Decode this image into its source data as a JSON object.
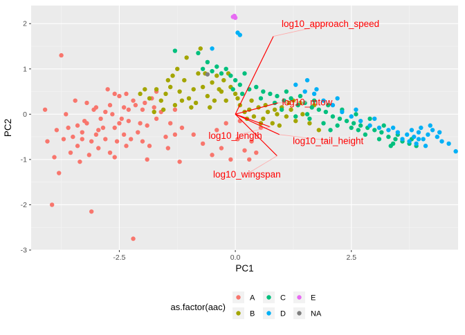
{
  "chart_data": {
    "type": "scatter",
    "title": "",
    "xlabel": "PC1",
    "ylabel": "PC2",
    "xlim": [
      -4.4,
      4.8
    ],
    "ylim": [
      -3.0,
      2.4
    ],
    "x_ticks": [
      -2.5,
      0.0,
      2.5
    ],
    "x_tick_labels": [
      "-2.5",
      "0.0",
      "2.5"
    ],
    "y_ticks": [
      -3,
      -2,
      -1,
      0,
      1,
      2
    ],
    "y_tick_labels": [
      "-3",
      "-2",
      "-1",
      "0",
      "1",
      "2"
    ],
    "grid": true,
    "legend": {
      "title": "as.factor(aac)",
      "placement": "bottom",
      "entries": [
        {
          "label": "A",
          "color": "#F8766D"
        },
        {
          "label": "B",
          "color": "#A3A500"
        },
        {
          "label": "C",
          "color": "#00BF7D"
        },
        {
          "label": "D",
          "color": "#00B0F6"
        },
        {
          "label": "E",
          "color": "#E76BF3"
        },
        {
          "label": "NA",
          "color": "#7F7F7F"
        }
      ]
    },
    "series": [
      {
        "name": "A",
        "color": "#F8766D",
        "points": [
          [
            -3.75,
            1.3
          ],
          [
            -4.1,
            0.1
          ],
          [
            -4.05,
            -0.6
          ],
          [
            -3.9,
            -0.95
          ],
          [
            -3.8,
            -1.3
          ],
          [
            -3.95,
            -2.0
          ],
          [
            -3.1,
            -2.15
          ],
          [
            -2.2,
            -2.75
          ],
          [
            -3.6,
            -0.3
          ],
          [
            -3.5,
            -0.5
          ],
          [
            -3.4,
            -0.7
          ],
          [
            -3.3,
            -0.4
          ],
          [
            -3.2,
            -0.2
          ],
          [
            -3.1,
            -0.6
          ],
          [
            -3.0,
            -0.45
          ],
          [
            -2.9,
            -0.1
          ],
          [
            -2.8,
            0.05
          ],
          [
            -2.7,
            0.2
          ],
          [
            -2.6,
            -0.3
          ],
          [
            -2.5,
            0.4
          ],
          [
            -2.4,
            0.15
          ],
          [
            -2.3,
            -0.15
          ],
          [
            -2.2,
            0.3
          ],
          [
            -2.1,
            -0.4
          ],
          [
            -2.0,
            0.1
          ],
          [
            -1.9,
            -0.25
          ],
          [
            -1.8,
            0.35
          ],
          [
            -1.7,
            -0.1
          ],
          [
            -1.6,
            0.05
          ],
          [
            -1.5,
            -0.5
          ],
          [
            -1.4,
            -0.2
          ],
          [
            -1.3,
            -0.45
          ],
          [
            -3.45,
            0.3
          ],
          [
            -3.25,
            -0.15
          ],
          [
            -3.05,
            0.1
          ],
          [
            -2.95,
            -0.75
          ],
          [
            -2.85,
            -0.3
          ],
          [
            -2.75,
            0.55
          ],
          [
            -2.65,
            0.0
          ],
          [
            -2.55,
            -0.6
          ],
          [
            -2.45,
            -0.1
          ],
          [
            -2.35,
            0.45
          ],
          [
            -2.25,
            -0.55
          ],
          [
            -2.15,
            0.2
          ],
          [
            -2.05,
            -0.2
          ],
          [
            -1.95,
            0.25
          ],
          [
            -1.85,
            -0.7
          ],
          [
            -1.75,
            0.15
          ],
          [
            -3.55,
            -0.85
          ],
          [
            -3.35,
            -1.05
          ],
          [
            -3.15,
            -0.9
          ],
          [
            -2.95,
            -0.35
          ],
          [
            -2.7,
            -0.85
          ],
          [
            -2.4,
            -0.45
          ],
          [
            -1.9,
            -1.0
          ],
          [
            -1.2,
            -1.05
          ],
          [
            -3.7,
            -0.55
          ],
          [
            -3.65,
            0.0
          ],
          [
            -3.4,
            -0.25
          ],
          [
            -3.2,
            0.25
          ],
          [
            -3.0,
            0.15
          ],
          [
            -2.8,
            -0.55
          ],
          [
            -2.6,
            0.45
          ],
          [
            -2.5,
            -0.2
          ],
          [
            -2.3,
            0.1
          ],
          [
            -2.0,
            -0.6
          ],
          [
            -1.7,
            0.5
          ],
          [
            -1.45,
            -0.75
          ],
          [
            -1.3,
            0.1
          ],
          [
            -1.15,
            -0.3
          ],
          [
            -0.9,
            -0.45
          ],
          [
            -0.7,
            -0.65
          ],
          [
            -0.5,
            -0.9
          ],
          [
            -0.3,
            -0.75
          ],
          [
            -0.1,
            -1.0
          ],
          [
            0.05,
            -0.55
          ],
          [
            0.2,
            -0.8
          ],
          [
            0.35,
            -0.6
          ],
          [
            0.45,
            -0.85
          ],
          [
            0.55,
            -0.3
          ],
          [
            -0.4,
            -0.35
          ],
          [
            -0.2,
            -0.2
          ],
          [
            0.1,
            -0.15
          ],
          [
            0.3,
            -1.0
          ],
          [
            -2.6,
            -0.95
          ],
          [
            -3.3,
            -0.55
          ],
          [
            -3.85,
            -0.35
          ],
          [
            -2.35,
            -0.7
          ]
        ]
      },
      {
        "name": "B",
        "color": "#A3A500",
        "points": [
          [
            -1.85,
            0.35
          ],
          [
            -1.7,
            0.55
          ],
          [
            -1.6,
            0.3
          ],
          [
            -1.5,
            0.45
          ],
          [
            -1.4,
            0.6
          ],
          [
            -1.3,
            0.2
          ],
          [
            -1.2,
            0.5
          ],
          [
            -1.1,
            0.75
          ],
          [
            -1.0,
            0.35
          ],
          [
            -0.9,
            0.55
          ],
          [
            -0.8,
            0.9
          ],
          [
            -0.7,
            0.6
          ],
          [
            -0.6,
            0.4
          ],
          [
            -0.5,
            0.7
          ],
          [
            -0.4,
            0.85
          ],
          [
            -0.3,
            0.5
          ],
          [
            -0.2,
            0.3
          ],
          [
            -0.1,
            0.6
          ],
          [
            0.0,
            0.45
          ],
          [
            0.1,
            0.2
          ],
          [
            0.2,
            0.05
          ],
          [
            0.3,
            0.1
          ],
          [
            0.4,
            -0.05
          ],
          [
            0.5,
            0.15
          ],
          [
            0.6,
            -0.1
          ],
          [
            0.7,
            0.05
          ],
          [
            0.8,
            -0.2
          ],
          [
            0.9,
            0.0
          ],
          [
            1.0,
            0.15
          ],
          [
            1.1,
            -0.05
          ],
          [
            1.2,
            0.1
          ],
          [
            1.3,
            -0.15
          ],
          [
            1.45,
            0.0
          ],
          [
            1.6,
            -0.2
          ],
          [
            1.8,
            -0.35
          ],
          [
            1.7,
            0.2
          ],
          [
            1.4,
            0.25
          ],
          [
            -1.25,
            1.0
          ],
          [
            -1.05,
            1.25
          ],
          [
            -0.75,
            1.45
          ],
          [
            -0.65,
            0.9
          ],
          [
            -0.95,
            0.15
          ],
          [
            -0.45,
            0.3
          ],
          [
            -0.25,
            0.75
          ],
          [
            -1.55,
            0.1
          ],
          [
            -1.35,
            0.85
          ],
          [
            -0.85,
            0.25
          ],
          [
            -0.15,
            0.9
          ],
          [
            -1.75,
            0.05
          ],
          [
            -1.15,
            0.3
          ],
          [
            -0.55,
            0.15
          ],
          [
            0.05,
            0.35
          ],
          [
            0.35,
            0.3
          ],
          [
            0.65,
            0.2
          ],
          [
            0.95,
            -0.25
          ],
          [
            1.15,
            0.25
          ],
          [
            -2.05,
            0.45
          ],
          [
            -1.95,
            0.55
          ],
          [
            -1.45,
            0.75
          ],
          [
            -0.35,
            0.55
          ],
          [
            0.25,
            -0.1
          ],
          [
            0.55,
            -0.2
          ],
          [
            0.85,
            0.1
          ],
          [
            1.25,
            0.3
          ]
        ]
      },
      {
        "name": "C",
        "color": "#00BF7D",
        "points": [
          [
            -1.3,
            1.4
          ],
          [
            -0.8,
            1.35
          ],
          [
            -0.7,
            1.0
          ],
          [
            -0.6,
            1.15
          ],
          [
            -0.5,
            0.95
          ],
          [
            -0.4,
            1.05
          ],
          [
            -0.3,
            0.9
          ],
          [
            -0.2,
            1.0
          ],
          [
            -0.1,
            0.85
          ],
          [
            0.0,
            0.75
          ],
          [
            0.1,
            0.65
          ],
          [
            0.2,
            0.9
          ],
          [
            0.3,
            0.55
          ],
          [
            0.45,
            0.6
          ],
          [
            0.6,
            0.5
          ],
          [
            0.75,
            0.45
          ],
          [
            0.9,
            0.4
          ],
          [
            1.05,
            0.3
          ],
          [
            1.2,
            0.35
          ],
          [
            1.35,
            0.2
          ],
          [
            1.5,
            0.25
          ],
          [
            1.65,
            0.15
          ],
          [
            1.8,
            0.1
          ],
          [
            1.95,
            0.05
          ],
          [
            2.1,
            -0.05
          ],
          [
            2.25,
            -0.1
          ],
          [
            2.4,
            -0.15
          ],
          [
            2.55,
            -0.2
          ],
          [
            2.7,
            -0.25
          ],
          [
            2.85,
            -0.3
          ],
          [
            3.0,
            -0.35
          ],
          [
            3.15,
            -0.4
          ],
          [
            3.3,
            -0.5
          ],
          [
            3.45,
            -0.55
          ],
          [
            3.6,
            -0.6
          ],
          [
            3.75,
            -0.65
          ],
          [
            3.9,
            -0.7
          ],
          [
            1.0,
            0.1
          ],
          [
            1.3,
            -0.05
          ],
          [
            1.6,
            -0.1
          ],
          [
            1.9,
            -0.2
          ],
          [
            2.2,
            -0.25
          ],
          [
            2.5,
            -0.3
          ],
          [
            2.8,
            -0.45
          ],
          [
            3.1,
            -0.55
          ],
          [
            3.4,
            -0.65
          ],
          [
            1.1,
            0.5
          ],
          [
            1.4,
            0.4
          ],
          [
            1.7,
            0.3
          ],
          [
            2.0,
            0.2
          ],
          [
            2.3,
            0.1
          ],
          [
            2.6,
            0.0
          ],
          [
            2.9,
            -0.1
          ],
          [
            3.2,
            -0.25
          ],
          [
            3.5,
            -0.45
          ],
          [
            3.8,
            -0.55
          ],
          [
            -0.05,
            0.55
          ],
          [
            0.15,
            0.45
          ],
          [
            0.55,
            0.35
          ],
          [
            0.85,
            0.25
          ],
          [
            1.55,
            0.0
          ],
          [
            2.05,
            -0.35
          ],
          [
            2.65,
            -0.35
          ],
          [
            3.35,
            -0.7
          ]
        ]
      },
      {
        "name": "D",
        "color": "#00B0F6",
        "points": [
          [
            -0.5,
            1.45
          ],
          [
            0.05,
            1.8
          ],
          [
            0.1,
            1.75
          ],
          [
            1.3,
            0.65
          ],
          [
            1.5,
            0.5
          ],
          [
            1.7,
            0.45
          ],
          [
            1.9,
            0.3
          ],
          [
            2.1,
            0.2
          ],
          [
            2.3,
            0.05
          ],
          [
            2.5,
            -0.05
          ],
          [
            2.7,
            -0.15
          ],
          [
            2.9,
            -0.25
          ],
          [
            3.1,
            -0.3
          ],
          [
            3.3,
            -0.35
          ],
          [
            3.5,
            -0.4
          ],
          [
            3.7,
            -0.45
          ],
          [
            3.85,
            -0.5
          ],
          [
            3.95,
            -0.4
          ],
          [
            4.05,
            -0.55
          ],
          [
            4.15,
            -0.45
          ],
          [
            4.25,
            -0.35
          ],
          [
            4.35,
            -0.5
          ],
          [
            4.45,
            -0.6
          ],
          [
            3.75,
            -0.6
          ],
          [
            3.9,
            -0.65
          ],
          [
            4.0,
            -0.3
          ],
          [
            4.2,
            -0.25
          ],
          [
            4.4,
            -0.4
          ],
          [
            4.6,
            -0.65
          ],
          [
            4.75,
            -0.82
          ],
          [
            3.4,
            -0.3
          ],
          [
            3.6,
            -0.55
          ],
          [
            2.2,
            0.35
          ],
          [
            1.55,
            0.75
          ],
          [
            1.75,
            0.55
          ],
          [
            2.6,
            0.1
          ],
          [
            3.0,
            -0.1
          ],
          [
            3.8,
            -0.35
          ],
          [
            4.1,
            -0.7
          ],
          [
            3.95,
            -0.55
          ]
        ]
      },
      {
        "name": "E",
        "color": "#E76BF3",
        "points": [
          [
            -0.05,
            2.15
          ],
          [
            0.0,
            2.13
          ],
          [
            -0.02,
            2.17
          ]
        ]
      },
      {
        "name": "NA",
        "color": "#7F7F7F",
        "points": [
          [
            -0.6,
            0.88
          ]
        ]
      }
    ],
    "arrows": [
      {
        "label": "log10_approach_speed",
        "x": 0.82,
        "y": 1.72,
        "label_x": 2.05,
        "label_y": 2.0
      },
      {
        "label": "log10_mtow",
        "x": 0.92,
        "y": 0.25,
        "label_x": 1.55,
        "label_y": 0.27
      },
      {
        "label": "log10_length",
        "x": 0.75,
        "y": -0.28,
        "label_x": 0.0,
        "label_y": -0.47
      },
      {
        "label": "log10_tail_height",
        "x": 0.95,
        "y": -0.45,
        "label_x": 2.0,
        "label_y": -0.58
      },
      {
        "label": "log10_wingspan",
        "x": 0.9,
        "y": -0.92,
        "label_x": 0.25,
        "label_y": -1.32
      }
    ]
  }
}
